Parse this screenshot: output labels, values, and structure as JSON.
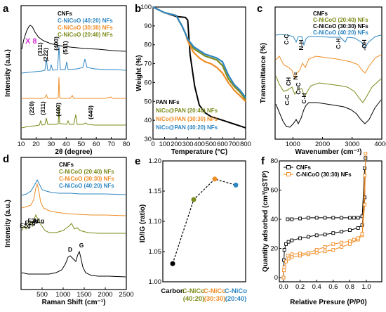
{
  "colors": {
    "black": "#000000",
    "blue": "#2E86C1",
    "orange": "#F08C24",
    "olive": "#7C8A1A",
    "magenta": "#D633D6"
  },
  "chart_data": [
    {
      "panel": "a",
      "type": "line",
      "xlabel": "2θ (degree)",
      "ylabel": "Intensity (a.u.)",
      "xlim": [
        10,
        80
      ],
      "xticks": [
        10,
        20,
        30,
        40,
        50,
        60,
        70,
        80
      ],
      "legend": [
        "CNFs",
        "C-NiCoO (40:20) NFs",
        "C-NiCoO (30:30) NFs",
        "C-NiCoO (20:40) NFs"
      ],
      "legend_placement": "top-right",
      "annotations": {
        "scale": "X 8",
        "blue_peaks": [
          {
            "x": 37,
            "label": "(311)"
          },
          {
            "x": 43,
            "label": "(222)"
          },
          {
            "x": 51,
            "label": "(400)"
          },
          {
            "x": 62,
            "label": "(511)"
          }
        ],
        "olive_peaks": [
          {
            "x": 31,
            "label": "(220)"
          },
          {
            "x": 37,
            "label": "(311)"
          },
          {
            "x": 44,
            "label": "(400)"
          },
          {
            "x": 64,
            "label": "(440)"
          }
        ]
      }
    },
    {
      "panel": "b",
      "type": "line",
      "xlabel": "Temperature (°C)",
      "ylabel": "Weight (%)",
      "xlim": [
        0,
        800
      ],
      "ylim": [
        30,
        100
      ],
      "xticks": [
        0,
        100,
        200,
        300,
        400,
        500,
        600,
        700,
        800
      ],
      "yticks": [
        30,
        40,
        50,
        60,
        70,
        80,
        90,
        100
      ],
      "legend": [
        "PAN NFs",
        "NiCo@PAN (20:40) NFs",
        "NiCo@PAN (30:30) NFs",
        "NiCo@PAN (40:20) NFs"
      ],
      "legend_placement": "bottom-left",
      "series": [
        {
          "x": [
            0,
            100,
            200,
            280,
            300,
            320,
            360,
            400,
            450,
            500,
            550,
            600,
            650,
            700,
            750,
            800
          ],
          "y": [
            100,
            97,
            95,
            94.5,
            93,
            75,
            58,
            48,
            44,
            42,
            41,
            40,
            39,
            38,
            37,
            36
          ]
        },
        {
          "x": [
            0,
            100,
            200,
            250,
            280,
            300,
            350,
            400,
            450,
            500,
            550,
            600,
            650,
            700,
            750,
            800
          ],
          "y": [
            100,
            97,
            95.5,
            90,
            86,
            83,
            78,
            76,
            74,
            73,
            72,
            69,
            62,
            58,
            55,
            51
          ]
        },
        {
          "x": [
            0,
            100,
            200,
            250,
            280,
            300,
            350,
            400,
            450,
            500,
            550,
            600,
            650,
            700,
            750,
            800
          ],
          "y": [
            100,
            97,
            95.5,
            90,
            86,
            82,
            76,
            73,
            71,
            70,
            68,
            65,
            60,
            56,
            53,
            50
          ]
        },
        {
          "x": [
            0,
            100,
            200,
            250,
            280,
            300,
            350,
            400,
            450,
            500,
            550,
            600,
            650,
            700,
            750,
            800
          ],
          "y": [
            100,
            97,
            95.5,
            90,
            86,
            83,
            79,
            77,
            75,
            74,
            73,
            71,
            64,
            59,
            56,
            52
          ]
        }
      ]
    },
    {
      "panel": "c",
      "type": "line",
      "xlabel": "Wavenumber (cm⁻¹)",
      "ylabel": "Transmittance (%)",
      "xlim": [
        400,
        4000
      ],
      "xticks": [
        1000,
        2000,
        3000,
        4000
      ],
      "legend": [
        "CNFs",
        "C-NiCoO (20:40) NFs",
        "C-NiCoO (30:30) NFs",
        "C-NiCoO (40:20) NFs"
      ],
      "legend_placement": "top-right",
      "annotations": [
        "C-C",
        "N-H",
        "C-H",
        "-OH",
        "CH",
        "N=",
        "C=C",
        "C-C",
        "C-H"
      ]
    },
    {
      "panel": "d",
      "type": "line",
      "xlabel": "Raman Shift (cm⁻¹)",
      "ylabel": "Intensity (a.u.)",
      "xlim": [
        0,
        2500
      ],
      "xticks": [
        500,
        1000,
        1500,
        2000,
        2500
      ],
      "legend": [
        "CNFs",
        "C-NiCoO (20:40) NFs",
        "C-NiCoO (30:30) NFs",
        "C-NiCoO (40:20) NFs"
      ],
      "legend_placement": "top-right",
      "annotations": [
        "E2g",
        "F2g",
        "F2g",
        "A1g",
        "D",
        "G"
      ]
    },
    {
      "panel": "e",
      "type": "scatter",
      "ylabel": "ID/IG (ratio)",
      "ylim": [
        1.0,
        1.2
      ],
      "yticks": [
        1.0,
        1.05,
        1.1,
        1.15,
        1.2
      ],
      "categories": [
        [
          "Carbon"
        ],
        [
          "C-NiCo",
          "(40:20)"
        ],
        [
          "C-NiCo",
          "(30:30)"
        ],
        [
          "C-NiCo",
          "(20:40)"
        ]
      ],
      "values": [
        1.03,
        1.136,
        1.17,
        1.16
      ]
    },
    {
      "panel": "f",
      "type": "line",
      "xlabel": "Relative Presure (P/P0)",
      "ylabel": "Quantity adsorbed (cm³/gSTP)",
      "xlim": [
        0,
        1.0
      ],
      "ylim": [
        0,
        80
      ],
      "xticks": [
        0.0,
        0.2,
        0.4,
        0.6,
        0.8,
        1.0
      ],
      "yticks": [
        0,
        20,
        40,
        60,
        80
      ],
      "legend": [
        "CNFs",
        "C-NiCoO (30:30) NFs"
      ],
      "legend_placement": "top-left",
      "series": [
        {
          "x": [
            0.0,
            0.005,
            0.01,
            0.03,
            0.06,
            0.1,
            0.2,
            0.3,
            0.4,
            0.5,
            0.6,
            0.7,
            0.8,
            0.9,
            0.95,
            0.98,
            0.99
          ],
          "y": [
            0,
            12,
            19,
            23,
            24.5,
            25.5,
            27,
            28,
            29,
            29.5,
            30.5,
            31.5,
            32.5,
            34,
            36,
            55,
            82
          ]
        },
        {
          "x": [
            0.05,
            0.1,
            0.2,
            0.3,
            0.4,
            0.5,
            0.6,
            0.7,
            0.8,
            0.85,
            0.9,
            0.95,
            0.98
          ],
          "y": [
            40,
            40,
            40.5,
            41,
            41,
            41,
            41,
            41,
            41,
            41,
            41,
            42,
            75
          ]
        },
        {
          "x": [
            0.0,
            0.005,
            0.01,
            0.03,
            0.06,
            0.1,
            0.2,
            0.3,
            0.4,
            0.5,
            0.6,
            0.7,
            0.8,
            0.9,
            0.95,
            0.98,
            0.99
          ],
          "y": [
            0,
            5,
            7,
            11,
            13,
            14,
            15,
            16,
            17,
            18,
            19,
            21,
            23,
            26,
            29,
            50,
            85
          ]
        },
        {
          "x": [
            0.05,
            0.1,
            0.2,
            0.3,
            0.4,
            0.5,
            0.6,
            0.7,
            0.8,
            0.85,
            0.9,
            0.95,
            0.98
          ],
          "y": [
            15,
            16,
            16.5,
            17,
            19,
            21,
            23,
            24,
            25,
            26,
            27,
            30,
            70
          ]
        }
      ]
    }
  ]
}
